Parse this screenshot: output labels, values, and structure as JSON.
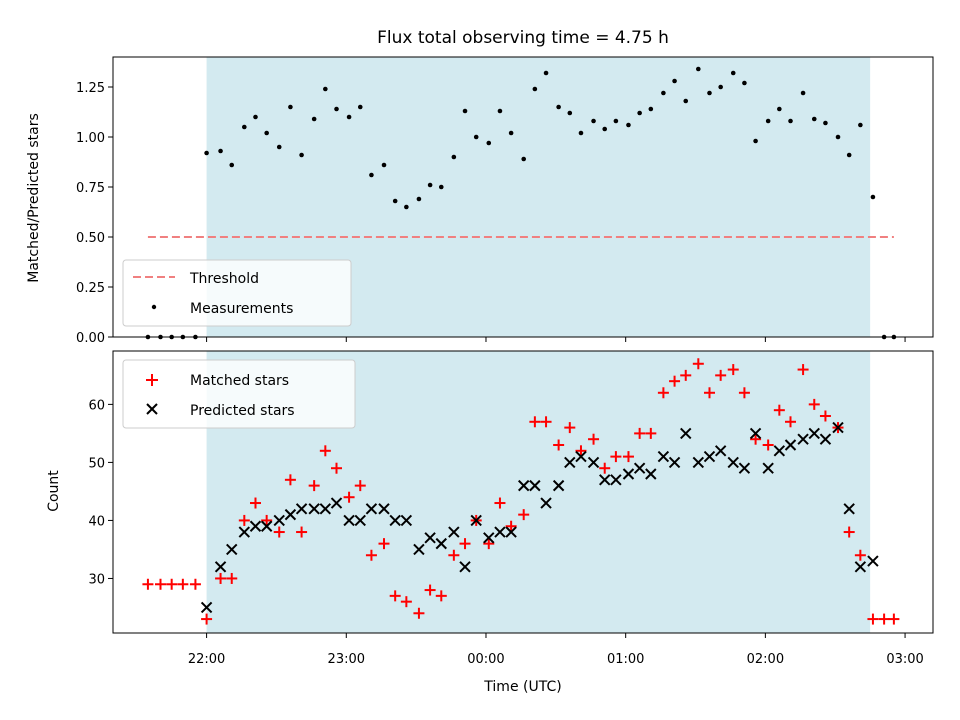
{
  "chart_data": [
    {
      "type": "scatter",
      "title": "Flux total observing time = 4.75 h",
      "xlabel": "",
      "ylabel": "Matched/Predicted stars",
      "ylim": [
        0,
        1.4
      ],
      "yticks": [
        "0.00",
        "0.25",
        "0.50",
        "0.75",
        "1.00",
        "1.25"
      ],
      "observing_window_hours": [
        22.0,
        26.75
      ],
      "observing_window_color": "#d3eaf0",
      "legend": {
        "placement": "lower-left",
        "entries": [
          "Threshold",
          "Measurements"
        ]
      },
      "series": [
        {
          "name": "Threshold",
          "kind": "dashed-line",
          "color": "#f08080",
          "x": [
            21.58,
            26.92
          ],
          "y": [
            0.5,
            0.5
          ]
        },
        {
          "name": "Measurements",
          "kind": "points",
          "color": "#000000",
          "x": [
            21.58,
            21.67,
            21.75,
            21.83,
            21.92,
            22.0,
            22.1,
            22.18,
            22.27,
            22.35,
            22.43,
            22.52,
            22.6,
            22.68,
            22.77,
            22.85,
            22.93,
            23.02,
            23.1,
            23.18,
            23.27,
            23.35,
            23.43,
            23.52,
            23.6,
            23.68,
            23.77,
            23.85,
            23.93,
            24.02,
            24.1,
            24.18,
            24.27,
            24.35,
            24.43,
            24.52,
            24.6,
            24.68,
            24.77,
            24.85,
            24.93,
            25.02,
            25.1,
            25.18,
            25.27,
            25.35,
            25.43,
            25.52,
            25.6,
            25.68,
            25.77,
            25.85,
            25.93,
            26.02,
            26.1,
            26.18,
            26.27,
            26.35,
            26.43,
            26.52,
            26.6,
            26.68,
            26.77,
            26.85,
            26.92
          ],
          "y": [
            0.0,
            0.0,
            0.0,
            0.0,
            0.0,
            0.92,
            0.93,
            0.86,
            1.05,
            1.1,
            1.02,
            0.95,
            1.15,
            0.91,
            1.09,
            1.24,
            1.14,
            1.1,
            1.15,
            0.81,
            0.86,
            0.68,
            0.65,
            0.69,
            0.76,
            0.75,
            0.9,
            1.13,
            1.0,
            0.97,
            1.13,
            1.02,
            0.89,
            1.24,
            1.32,
            1.15,
            1.12,
            1.02,
            1.08,
            1.04,
            1.08,
            1.06,
            1.12,
            1.14,
            1.22,
            1.28,
            1.18,
            1.34,
            1.22,
            1.25,
            1.32,
            1.27,
            0.98,
            1.08,
            1.14,
            1.08,
            1.22,
            1.09,
            1.07,
            1.0,
            0.91,
            1.06,
            0.7,
            0.0,
            0.0
          ]
        }
      ]
    },
    {
      "type": "scatter",
      "title": "",
      "xlabel": "Time (UTC)",
      "ylabel": "Count",
      "ylim": [
        20.6,
        69.2
      ],
      "yticks": [
        "30",
        "40",
        "50",
        "60"
      ],
      "xticks": [
        "22:00",
        "23:00",
        "00:00",
        "01:00",
        "02:00",
        "03:00"
      ],
      "xtick_hours": [
        22,
        23,
        24,
        25,
        26,
        27
      ],
      "xlim_hours": [
        21.33,
        27.2
      ],
      "observing_window_hours": [
        22.0,
        26.75
      ],
      "legend": {
        "placement": "top-left",
        "entries": [
          "Matched stars",
          "Predicted stars"
        ]
      },
      "series": [
        {
          "name": "Matched stars",
          "marker": "+",
          "color": "#ff0000",
          "x": [
            21.58,
            21.67,
            21.75,
            21.83,
            21.92,
            22.0,
            22.1,
            22.18,
            22.27,
            22.35,
            22.43,
            22.52,
            22.6,
            22.68,
            22.77,
            22.85,
            22.93,
            23.02,
            23.1,
            23.18,
            23.27,
            23.35,
            23.43,
            23.52,
            23.6,
            23.68,
            23.77,
            23.85,
            23.93,
            24.02,
            24.1,
            24.18,
            24.27,
            24.35,
            24.43,
            24.52,
            24.6,
            24.68,
            24.77,
            24.85,
            24.93,
            25.02,
            25.1,
            25.18,
            25.27,
            25.35,
            25.43,
            25.52,
            25.6,
            25.68,
            25.77,
            25.85,
            25.93,
            26.02,
            26.1,
            26.18,
            26.27,
            26.35,
            26.43,
            26.52,
            26.6,
            26.68,
            26.77,
            26.85,
            26.92
          ],
          "y": [
            29,
            29,
            29,
            29,
            29,
            23,
            30,
            30,
            40,
            43,
            40,
            38,
            47,
            38,
            46,
            52,
            49,
            44,
            46,
            34,
            36,
            27,
            26,
            24,
            28,
            27,
            34,
            36,
            40,
            36,
            43,
            39,
            41,
            57,
            57,
            53,
            56,
            52,
            54,
            49,
            51,
            51,
            55,
            55,
            62,
            64,
            65,
            67,
            62,
            65,
            66,
            62,
            54,
            53,
            59,
            57,
            66,
            60,
            58,
            56,
            38,
            34,
            23,
            23,
            23
          ]
        },
        {
          "name": "Predicted stars",
          "marker": "x",
          "color": "#000000",
          "x": [
            22.0,
            22.1,
            22.18,
            22.27,
            22.35,
            22.43,
            22.52,
            22.6,
            22.68,
            22.77,
            22.85,
            22.93,
            23.02,
            23.1,
            23.18,
            23.27,
            23.35,
            23.43,
            23.52,
            23.6,
            23.68,
            23.77,
            23.85,
            23.93,
            24.02,
            24.1,
            24.18,
            24.27,
            24.35,
            24.43,
            24.52,
            24.6,
            24.68,
            24.77,
            24.85,
            24.93,
            25.02,
            25.1,
            25.18,
            25.27,
            25.35,
            25.43,
            25.52,
            25.6,
            25.68,
            25.77,
            25.85,
            25.93,
            26.02,
            26.1,
            26.18,
            26.27,
            26.35,
            26.43,
            26.52,
            26.6,
            26.68,
            26.77
          ],
          "y": [
            25,
            32,
            35,
            38,
            39,
            39,
            40,
            41,
            42,
            42,
            42,
            43,
            40,
            40,
            42,
            42,
            40,
            40,
            35,
            37,
            36,
            38,
            32,
            40,
            37,
            38,
            38,
            46,
            46,
            43,
            46,
            50,
            51,
            50,
            47,
            47,
            48,
            49,
            48,
            51,
            50,
            55,
            50,
            51,
            52,
            50,
            49,
            55,
            49,
            52,
            53,
            54,
            55,
            54,
            56,
            42,
            32,
            33
          ]
        }
      ]
    }
  ]
}
